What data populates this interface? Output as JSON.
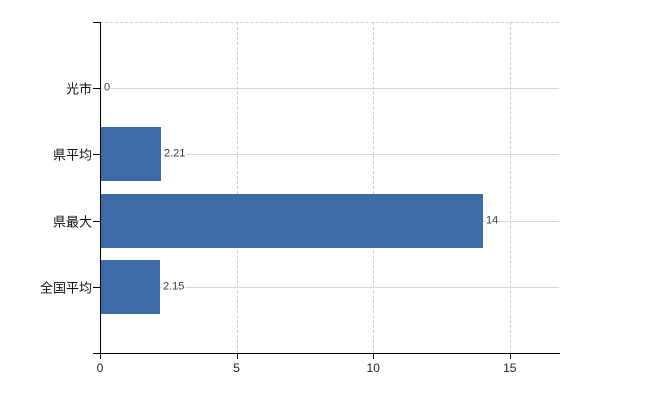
{
  "chart_data": {
    "type": "bar",
    "orientation": "horizontal",
    "categories": [
      "光市",
      "県平均",
      "県最大",
      "全国平均"
    ],
    "values": [
      0,
      2.21,
      14,
      2.15
    ],
    "value_labels": [
      "0",
      "2.21",
      "14",
      "2.15"
    ],
    "x_ticks": [
      0,
      5,
      10,
      15
    ],
    "x_tick_labels": [
      "0",
      "5",
      "10",
      "15"
    ],
    "xlim": [
      0,
      16.8
    ],
    "grid": {
      "vertical": "dashed",
      "horizontal": "solid",
      "top_border": "dashed"
    },
    "legend": "none",
    "colors": {
      "bar": "#3d6baa",
      "axis": "#000000",
      "grid_horizontal": "#d5d9d3",
      "grid_vertical": "#c9cdc9",
      "top_border": "#cccccf",
      "category_label": "#111111",
      "value_label": "#3b3b3b",
      "tick_label": "#222222",
      "background": "#ffffff"
    }
  }
}
